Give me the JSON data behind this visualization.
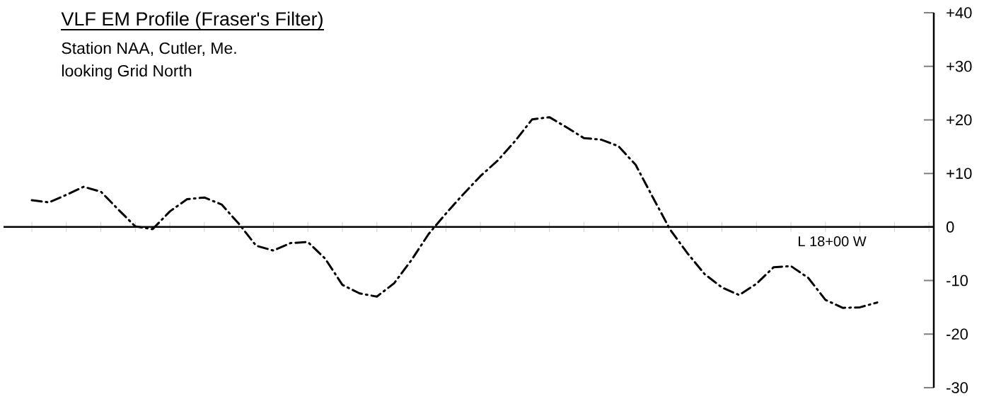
{
  "chart_data": {
    "type": "line",
    "title": "VLF EM Profile (Fraser's Filter)",
    "subtitle": "Station NAA, Cutler, Me.",
    "annotations": [
      "looking Grid North",
      "L 18+00 W"
    ],
    "categories": [
      null,
      null,
      null,
      null,
      null,
      null,
      null,
      null,
      null,
      null,
      null,
      null,
      null,
      null,
      null,
      null,
      null,
      null,
      null,
      null,
      null,
      null,
      null,
      null,
      null,
      null,
      null,
      null,
      null,
      null,
      null,
      null,
      null,
      null,
      null,
      null,
      null,
      null,
      null,
      null,
      null,
      null,
      null,
      null,
      null,
      null,
      null,
      null,
      null,
      null
    ],
    "ylim": [
      -30,
      40
    ],
    "yticks": [
      -30,
      -20,
      -10,
      0,
      {
        "value": 10,
        "label": "+10"
      },
      {
        "value": 20,
        "label": "+20"
      },
      {
        "value": 30,
        "label": "+30"
      },
      {
        "value": 40,
        "label": "+40"
      }
    ],
    "tick_labels": "y",
    "marker": "none",
    "line_style": "dashed",
    "series": [
      {
        "color": "#000000",
        "values": [
          5.0,
          4.6,
          6.0,
          7.5,
          6.6,
          3.3,
          0.1,
          -0.4,
          2.9,
          5.2,
          5.5,
          4.2,
          0.6,
          -3.5,
          -4.4,
          -3.0,
          -2.8,
          -5.9,
          -10.8,
          -12.4,
          -13.0,
          -10.5,
          -6.2,
          -1.3,
          2.5,
          6.1,
          9.5,
          12.4,
          16.0,
          20.1,
          20.5,
          18.6,
          16.6,
          16.3,
          15.1,
          11.6,
          5.5,
          -0.5,
          -4.9,
          -8.8,
          -11.3,
          -12.7,
          -10.6,
          -7.5,
          -7.3,
          -9.5,
          -13.6,
          -15.1,
          -15.0,
          -14.1
        ]
      }
    ]
  }
}
